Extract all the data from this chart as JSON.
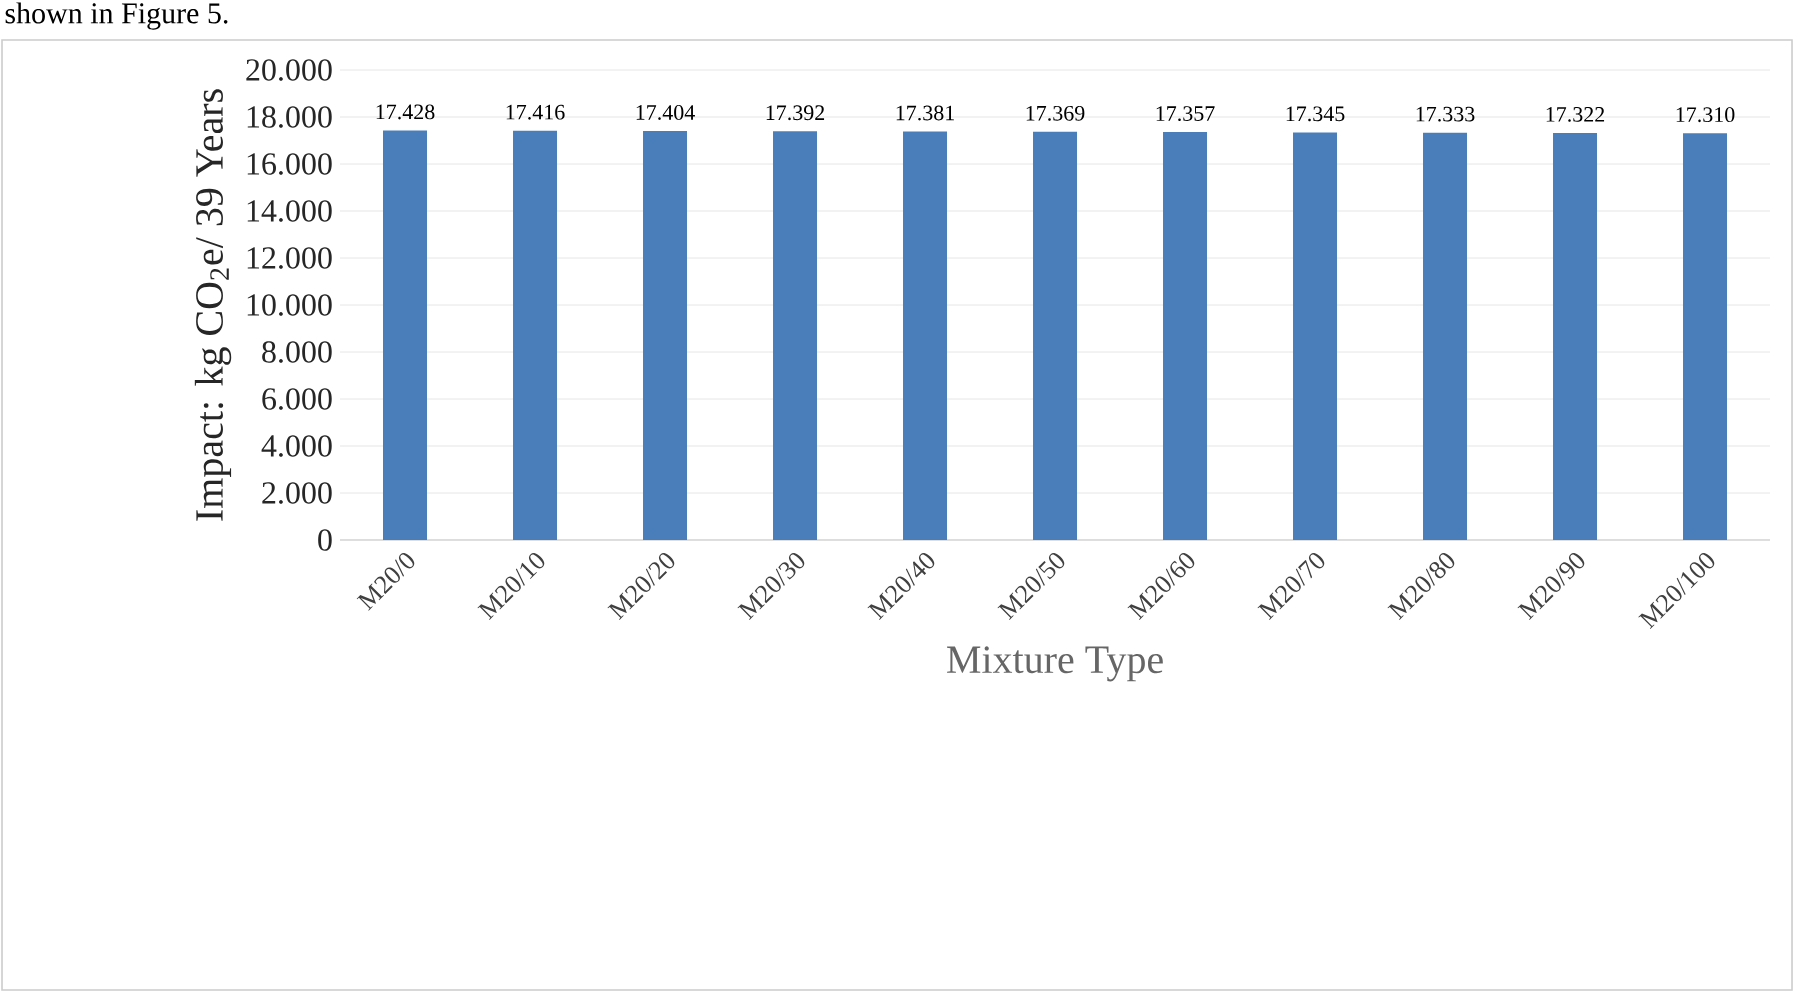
{
  "chart_data": {
    "type": "bar",
    "xlabel": "Mixture Type",
    "ylabel": "Impact: kg CO$_{2}$e/ 39 Years",
    "categories": [
      "M20/0",
      "M20/10",
      "M20/20",
      "M20/30",
      "M20/40",
      "M20/50",
      "M20/60",
      "M20/70",
      "M20/80",
      "M20/90",
      "M20/100"
    ],
    "values": [
      17428,
      17416,
      17404,
      17392,
      17381,
      17369,
      17357,
      17345,
      17333,
      17322,
      17310
    ],
    "value_labels": [
      "17.428",
      "17.416",
      "17.404",
      "17.392",
      "17.381",
      "17.369",
      "17.357",
      "17.345",
      "17.333",
      "17.322",
      "17.310"
    ],
    "color": "#4a7ebb",
    "ylim": [
      0,
      20000
    ],
    "yticks": [
      0,
      {
        "value": 2000,
        "label": "2.000"
      },
      {
        "value": 4000,
        "label": "4.000"
      },
      {
        "value": 6000,
        "label": "6.000"
      },
      {
        "value": 8000,
        "label": "8.000"
      },
      {
        "value": 10000,
        "label": "10.000"
      },
      {
        "value": 12000,
        "label": "12.000"
      },
      {
        "value": 14000,
        "label": "14.000"
      },
      {
        "value": 16000,
        "label": "16.000"
      },
      {
        "value": 18000,
        "label": "18.000"
      },
      {
        "value": 20000,
        "label": "20.000"
      }
    ],
    "grid": "y",
    "annotations": [
      "shown in Figure 5."
    ]
  }
}
